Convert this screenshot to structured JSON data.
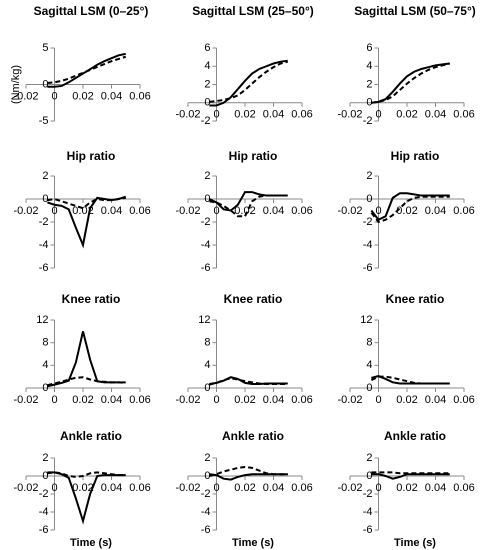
{
  "chart_data": [
    {
      "type": "line",
      "title": "Sagittal LSM (0–25°)",
      "y_label": "(Nm/kg)",
      "x": [
        -0.005,
        0,
        0.005,
        0.01,
        0.015,
        0.02,
        0.025,
        0.03,
        0.035,
        0.04,
        0.045,
        0.05
      ],
      "xlim": [
        -0.02,
        0.06
      ],
      "xticks": [
        -0.02,
        0,
        0.02,
        0.04,
        0.06
      ],
      "ylim": [
        -5,
        5
      ],
      "yticks": [
        -5,
        0,
        5
      ],
      "series": [
        {
          "color": "#000000",
          "dash": false,
          "values": [
            -0.3,
            -0.3,
            -0.2,
            0.3,
            0.9,
            1.5,
            2.1,
            2.7,
            3.2,
            3.6,
            4.0,
            4.2
          ]
        },
        {
          "color": "#000000",
          "dash": true,
          "values": [
            0.2,
            0.3,
            0.5,
            0.8,
            1.2,
            1.6,
            2.0,
            2.4,
            2.8,
            3.2,
            3.5,
            3.8
          ]
        }
      ]
    },
    {
      "type": "line",
      "title": "Sagittal LSM (25–50°)",
      "x": [
        -0.005,
        0,
        0.005,
        0.01,
        0.015,
        0.02,
        0.025,
        0.03,
        0.035,
        0.04,
        0.045,
        0.05
      ],
      "xlim": [
        -0.02,
        0.06
      ],
      "xticks": [
        -0.02,
        0,
        0.02,
        0.04,
        0.06
      ],
      "ylim": [
        -2,
        6
      ],
      "yticks": [
        -2,
        0,
        2,
        4,
        6
      ],
      "series": [
        {
          "color": "#000000",
          "dash": false,
          "values": [
            -0.3,
            -0.3,
            0,
            0.6,
            1.5,
            2.4,
            3.2,
            3.7,
            4.0,
            4.3,
            4.5,
            4.6
          ]
        },
        {
          "color": "#000000",
          "dash": true,
          "values": [
            0.1,
            0.2,
            0.3,
            0.5,
            0.8,
            1.4,
            2.1,
            2.8,
            3.4,
            3.9,
            4.3,
            4.5
          ]
        }
      ]
    },
    {
      "type": "line",
      "title": "Sagittal LSM (50–75°)",
      "x": [
        -0.005,
        0,
        0.005,
        0.01,
        0.015,
        0.02,
        0.025,
        0.03,
        0.035,
        0.04,
        0.045,
        0.05
      ],
      "xlim": [
        -0.02,
        0.06
      ],
      "xticks": [
        -0.02,
        0,
        0.02,
        0.04,
        0.06
      ],
      "ylim": [
        -2,
        6
      ],
      "yticks": [
        -2,
        0,
        2,
        4,
        6
      ],
      "series": [
        {
          "color": "#000000",
          "dash": false,
          "values": [
            0,
            0.1,
            0.4,
            1.2,
            2.1,
            2.9,
            3.4,
            3.7,
            3.9,
            4.1,
            4.2,
            4.3
          ]
        },
        {
          "color": "#000000",
          "dash": true,
          "values": [
            0,
            0.1,
            0.3,
            0.7,
            1.4,
            2.1,
            2.7,
            3.2,
            3.6,
            3.9,
            4.1,
            4.3
          ]
        }
      ]
    },
    {
      "type": "line",
      "title": "Hip ratio",
      "x": [
        -0.005,
        0,
        0.005,
        0.01,
        0.015,
        0.02,
        0.025,
        0.03,
        0.035,
        0.04,
        0.045,
        0.05
      ],
      "xlim": [
        -0.02,
        0.06
      ],
      "xticks": [
        -0.02,
        0,
        0.02,
        0.04,
        0.06
      ],
      "ylim": [
        -6,
        2
      ],
      "yticks": [
        -6,
        -4,
        -2,
        0,
        2
      ],
      "series": [
        {
          "color": "#000000",
          "dash": false,
          "values": [
            -0.3,
            -0.5,
            -0.6,
            -0.9,
            -2.5,
            -4.0,
            -0.8,
            0.1,
            0,
            -0.1,
            0,
            0.2
          ]
        },
        {
          "color": "#000000",
          "dash": true,
          "values": [
            -0.1,
            0,
            -0.2,
            -0.4,
            -0.6,
            -0.8,
            -0.3,
            0,
            -0.1,
            -0.1,
            0,
            0.1
          ]
        }
      ]
    },
    {
      "type": "line",
      "title": "Hip ratio",
      "x": [
        -0.005,
        0,
        0.005,
        0.01,
        0.015,
        0.02,
        0.025,
        0.03,
        0.035,
        0.04,
        0.045,
        0.05
      ],
      "xlim": [
        -0.02,
        0.06
      ],
      "xticks": [
        -0.02,
        0,
        0.02,
        0.04,
        0.06
      ],
      "ylim": [
        -6,
        2
      ],
      "yticks": [
        -6,
        -4,
        -2,
        0,
        2
      ],
      "series": [
        {
          "color": "#000000",
          "dash": false,
          "values": [
            0,
            -0.3,
            -0.9,
            -1.0,
            -0.5,
            0.6,
            0.6,
            0.4,
            0.3,
            0.3,
            0.3,
            0.3
          ]
        },
        {
          "color": "#000000",
          "dash": true,
          "values": [
            -0.2,
            -0.3,
            -0.6,
            -1.0,
            -1.5,
            -1.5,
            -0.2,
            0.2,
            0.3,
            0.3,
            0.3,
            0.3
          ]
        }
      ]
    },
    {
      "type": "line",
      "title": "Hip ratio",
      "x": [
        -0.005,
        0,
        0.005,
        0.01,
        0.015,
        0.02,
        0.025,
        0.03,
        0.035,
        0.04,
        0.045,
        0.05
      ],
      "xlim": [
        -0.02,
        0.06
      ],
      "xticks": [
        -0.02,
        0,
        0.02,
        0.04,
        0.06
      ],
      "ylim": [
        -6,
        2
      ],
      "yticks": [
        -6,
        -4,
        -2,
        0,
        2
      ],
      "series": [
        {
          "color": "#000000",
          "dash": false,
          "values": [
            -1.0,
            -1.8,
            -1.5,
            0.1,
            0.5,
            0.5,
            0.4,
            0.3,
            0.3,
            0.3,
            0.3,
            0.3
          ]
        },
        {
          "color": "#000000",
          "dash": true,
          "values": [
            -1.2,
            -2.0,
            -1.8,
            -1.4,
            -0.8,
            -0.2,
            0.1,
            0.2,
            0.2,
            0.2,
            0.2,
            0.2
          ]
        }
      ]
    },
    {
      "type": "line",
      "title": "Knee ratio",
      "x": [
        -0.005,
        0,
        0.005,
        0.01,
        0.015,
        0.02,
        0.025,
        0.03,
        0.035,
        0.04,
        0.045,
        0.05
      ],
      "xlim": [
        -0.02,
        0.06
      ],
      "xticks": [
        -0.02,
        0,
        0.02,
        0.04,
        0.06
      ],
      "ylim": [
        0,
        12
      ],
      "yticks": [
        0,
        4,
        8,
        12
      ],
      "series": [
        {
          "color": "#000000",
          "dash": false,
          "values": [
            0.3,
            0.6,
            0.9,
            1.3,
            4.5,
            10,
            5,
            1.2,
            1.0,
            1.0,
            1.0,
            1.0
          ]
        },
        {
          "color": "#000000",
          "dash": true,
          "values": [
            0.5,
            0.8,
            1.1,
            1.5,
            1.8,
            1.9,
            1.5,
            1.2,
            1.1,
            1.0,
            1.0,
            0.9
          ]
        }
      ]
    },
    {
      "type": "line",
      "title": "Knee ratio",
      "x": [
        -0.005,
        0,
        0.005,
        0.01,
        0.015,
        0.02,
        0.025,
        0.03,
        0.035,
        0.04,
        0.045,
        0.05
      ],
      "xlim": [
        -0.02,
        0.06
      ],
      "xticks": [
        -0.02,
        0,
        0.02,
        0.04,
        0.06
      ],
      "ylim": [
        0,
        12
      ],
      "yticks": [
        0,
        4,
        8,
        12
      ],
      "series": [
        {
          "color": "#000000",
          "dash": false,
          "values": [
            0.7,
            0.9,
            1.3,
            1.9,
            1.6,
            0.9,
            0.7,
            0.7,
            0.8,
            0.8,
            0.8,
            0.8
          ]
        },
        {
          "color": "#000000",
          "dash": true,
          "values": [
            0.6,
            0.9,
            1.4,
            1.7,
            1.5,
            1.2,
            1.0,
            0.8,
            0.7,
            0.7,
            0.7,
            0.7
          ]
        }
      ]
    },
    {
      "type": "line",
      "title": "Knee ratio",
      "x": [
        -0.005,
        0,
        0.005,
        0.01,
        0.015,
        0.02,
        0.025,
        0.03,
        0.035,
        0.04,
        0.045,
        0.05
      ],
      "xlim": [
        -0.02,
        0.06
      ],
      "xticks": [
        -0.02,
        0,
        0.02,
        0.04,
        0.06
      ],
      "ylim": [
        0,
        12
      ],
      "yticks": [
        0,
        4,
        8,
        12
      ],
      "series": [
        {
          "color": "#000000",
          "dash": false,
          "values": [
            1.8,
            2.1,
            1.6,
            1.0,
            0.8,
            0.8,
            0.8,
            0.8,
            0.8,
            0.8,
            0.8,
            0.8
          ]
        },
        {
          "color": "#000000",
          "dash": true,
          "values": [
            1.4,
            2.0,
            2.0,
            1.8,
            1.5,
            1.2,
            0.9,
            0.8,
            0.8,
            0.8,
            0.8,
            0.8
          ]
        }
      ]
    },
    {
      "type": "line",
      "title": "Ankle ratio",
      "x_label": "Time (s)",
      "x": [
        -0.005,
        0,
        0.005,
        0.01,
        0.015,
        0.02,
        0.025,
        0.03,
        0.035,
        0.04,
        0.045,
        0.05
      ],
      "xlim": [
        -0.02,
        0.06
      ],
      "xticks": [
        -0.02,
        0,
        0.02,
        0.04,
        0.06
      ],
      "ylim": [
        -6,
        2
      ],
      "yticks": [
        -6,
        -4,
        -2,
        0,
        2
      ],
      "series": [
        {
          "color": "#000000",
          "dash": false,
          "values": [
            0.4,
            0.4,
            0.2,
            -0.2,
            -2.5,
            -5.0,
            -2.0,
            0,
            0.1,
            0.1,
            0.1,
            0.1
          ]
        },
        {
          "color": "#000000",
          "dash": true,
          "values": [
            0.3,
            0.4,
            0.3,
            0,
            -0.1,
            0,
            0.3,
            0.4,
            0.3,
            0.2,
            0.1,
            0.1
          ]
        }
      ]
    },
    {
      "type": "line",
      "title": "Ankle ratio",
      "x_label": "Time (s)",
      "x": [
        -0.005,
        0,
        0.005,
        0.01,
        0.015,
        0.02,
        0.025,
        0.03,
        0.035,
        0.04,
        0.045,
        0.05
      ],
      "xlim": [
        -0.02,
        0.06
      ],
      "xticks": [
        -0.02,
        0,
        0.02,
        0.04,
        0.06
      ],
      "ylim": [
        -6,
        2
      ],
      "yticks": [
        -6,
        -4,
        -2,
        0,
        2
      ],
      "series": [
        {
          "color": "#000000",
          "dash": false,
          "values": [
            0.2,
            0.1,
            -0.3,
            -0.4,
            -0.1,
            0.1,
            0.2,
            0.2,
            0.2,
            0.2,
            0.2,
            0.2
          ]
        },
        {
          "color": "#000000",
          "dash": true,
          "values": [
            0,
            0.2,
            0.5,
            0.7,
            0.9,
            1.0,
            0.9,
            0.6,
            0.3,
            0.2,
            0.2,
            0.2
          ]
        }
      ]
    },
    {
      "type": "line",
      "title": "Ankle ratio",
      "x_label": "Time (s)",
      "x": [
        -0.005,
        0,
        0.005,
        0.01,
        0.015,
        0.02,
        0.025,
        0.03,
        0.035,
        0.04,
        0.045,
        0.05
      ],
      "xlim": [
        -0.02,
        0.06
      ],
      "xticks": [
        -0.02,
        0,
        0.02,
        0.04,
        0.06
      ],
      "ylim": [
        -6,
        2
      ],
      "yticks": [
        -6,
        -4,
        -2,
        0,
        2
      ],
      "series": [
        {
          "color": "#000000",
          "dash": false,
          "values": [
            0.2,
            0.2,
            0,
            -0.3,
            -0.1,
            0.2,
            0.2,
            0.2,
            0.2,
            0.2,
            0.2,
            0.2
          ]
        },
        {
          "color": "#000000",
          "dash": true,
          "values": [
            0.4,
            0.4,
            0.4,
            0.4,
            0.3,
            0.3,
            0.3,
            0.3,
            0.3,
            0.3,
            0.3,
            0.3
          ]
        }
      ]
    }
  ]
}
